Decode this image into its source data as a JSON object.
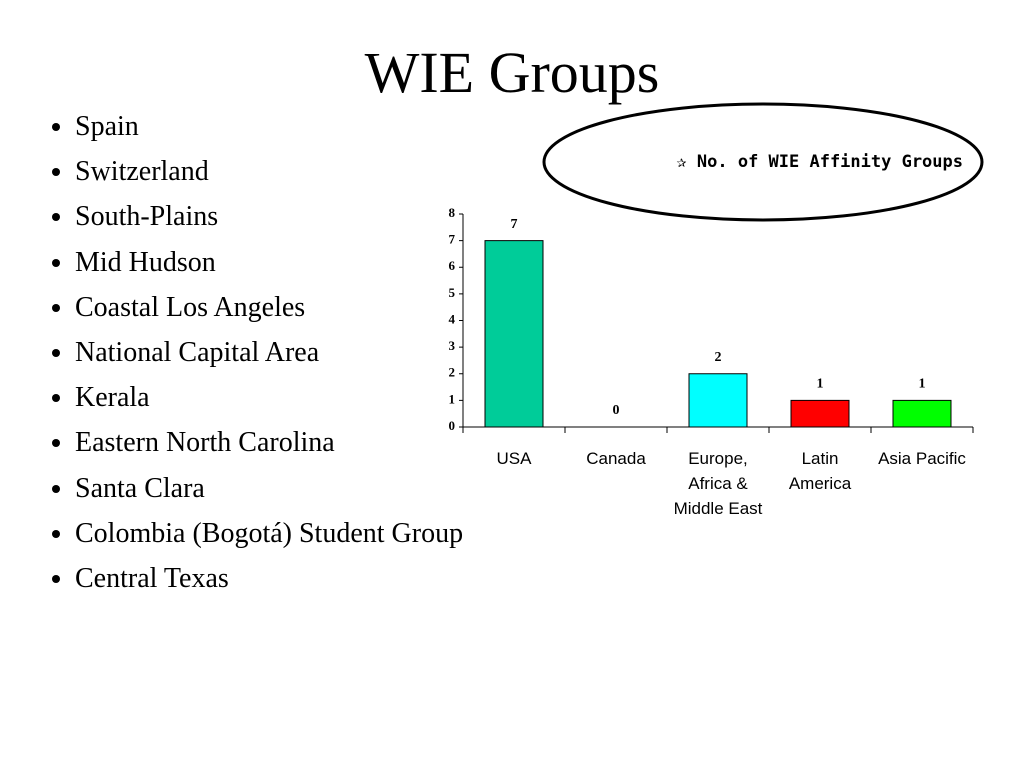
{
  "title": "WIE Groups",
  "bullets": [
    "Spain",
    "Switzerland",
    "South-Plains",
    "Mid Hudson",
    "Coastal Los Angeles",
    "National Capital Area",
    "Kerala",
    "Eastern North Carolina",
    "Santa Clara",
    "Colombia (Bogotá) Student Group",
    "Central Texas"
  ],
  "chart_data": {
    "type": "bar",
    "title": "✰ No. of WIE Affinity Groups",
    "categories": [
      "USA",
      "Canada",
      "Europe, Africa & Middle East",
      "Latin America",
      "Asia Pacific"
    ],
    "values": [
      7,
      0,
      2,
      1,
      1
    ],
    "colors": [
      "#00cc99",
      "#00cc99",
      "#00ffff",
      "#ff0000",
      "#00ff00"
    ],
    "ylim": [
      0,
      8
    ],
    "yticks": [
      0,
      1,
      2,
      3,
      4,
      5,
      6,
      7,
      8
    ],
    "grid": false
  }
}
